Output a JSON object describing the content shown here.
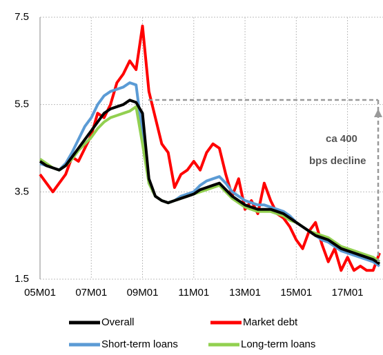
{
  "chart_data": {
    "type": "line",
    "categories": [
      "05M01",
      null,
      null,
      null,
      null,
      null,
      null,
      null,
      "07M01",
      null,
      null,
      null,
      null,
      null,
      null,
      null,
      "09M01",
      null,
      null,
      null,
      null,
      null,
      null,
      null,
      "11M01",
      null,
      null,
      null,
      null,
      null,
      null,
      null,
      "13M01",
      null,
      null,
      null,
      null,
      null,
      null,
      null,
      "15M01",
      null,
      null,
      null,
      null,
      null,
      null,
      null,
      "17M01",
      null,
      null,
      null,
      null,
      null
    ],
    "ylim": [
      1.5,
      7.5
    ],
    "yticks": [
      {
        "value": 1.5,
        "label": "1.5"
      },
      {
        "value": 3.5,
        "label": "3.5"
      },
      {
        "value": 5.5,
        "label": "5.5"
      },
      {
        "value": 7.5,
        "label": "7.5"
      }
    ],
    "grid": true,
    "annotation": [
      "ca 400",
      "bps decline"
    ],
    "series": [
      {
        "name": "Overall",
        "color": "#000000",
        "values": [
          4.2,
          4.1,
          4.05,
          4.0,
          4.1,
          4.3,
          4.5,
          4.7,
          4.9,
          5.1,
          5.3,
          5.4,
          5.45,
          5.5,
          5.6,
          5.55,
          5.3,
          3.8,
          3.4,
          3.3,
          3.25,
          3.3,
          3.35,
          3.4,
          3.45,
          3.55,
          3.6,
          3.65,
          3.7,
          3.55,
          3.4,
          3.3,
          3.2,
          3.15,
          3.1,
          3.1,
          3.1,
          3.05,
          3.0,
          2.9,
          2.8,
          2.7,
          2.6,
          2.5,
          2.45,
          2.4,
          2.3,
          2.2,
          2.15,
          2.1,
          2.05,
          2.0,
          1.95,
          1.85
        ]
      },
      {
        "name": "Market debt",
        "color": "#ff0000",
        "values": [
          3.9,
          3.7,
          3.5,
          3.7,
          3.9,
          4.3,
          4.2,
          4.5,
          4.8,
          5.3,
          5.2,
          5.5,
          6.0,
          6.2,
          6.5,
          6.3,
          7.3,
          5.8,
          5.2,
          4.6,
          4.4,
          3.6,
          3.9,
          4.0,
          4.2,
          4.0,
          4.4,
          4.6,
          4.5,
          3.9,
          3.4,
          3.8,
          3.1,
          3.3,
          3.0,
          3.7,
          3.3,
          3.0,
          2.9,
          2.7,
          2.4,
          2.2,
          2.6,
          2.8,
          2.3,
          1.9,
          2.2,
          1.7,
          2.0,
          1.7,
          1.8,
          1.7,
          1.7,
          2.1
        ]
      },
      {
        "name": "Short-term loans",
        "color": "#5b9bd5",
        "values": [
          4.15,
          4.1,
          4.05,
          4.0,
          4.15,
          4.4,
          4.7,
          5.0,
          5.2,
          5.5,
          5.7,
          5.8,
          5.85,
          5.9,
          6.0,
          5.95,
          4.8,
          3.7,
          3.4,
          3.3,
          3.25,
          3.3,
          3.4,
          3.45,
          3.5,
          3.65,
          3.75,
          3.8,
          3.85,
          3.7,
          3.5,
          3.4,
          3.3,
          3.25,
          3.2,
          3.2,
          3.15,
          3.1,
          3.05,
          2.95,
          2.8,
          2.7,
          2.6,
          2.5,
          2.4,
          2.35,
          2.25,
          2.15,
          2.1,
          2.05,
          2.0,
          1.95,
          1.9,
          1.8
        ]
      },
      {
        "name": "Long-term loans",
        "color": "#92d050",
        "values": [
          4.25,
          4.15,
          4.05,
          4.0,
          4.1,
          4.25,
          4.45,
          4.6,
          4.75,
          4.95,
          5.1,
          5.2,
          5.25,
          5.3,
          5.35,
          5.45,
          4.6,
          3.7,
          3.4,
          3.3,
          3.25,
          3.3,
          3.35,
          3.4,
          3.45,
          3.5,
          3.55,
          3.6,
          3.65,
          3.5,
          3.35,
          3.25,
          3.15,
          3.1,
          3.05,
          3.05,
          3.05,
          3.0,
          2.95,
          2.85,
          2.8,
          2.7,
          2.6,
          2.55,
          2.5,
          2.45,
          2.35,
          2.25,
          2.2,
          2.15,
          2.1,
          2.05,
          2.0,
          1.9
        ]
      }
    ]
  }
}
